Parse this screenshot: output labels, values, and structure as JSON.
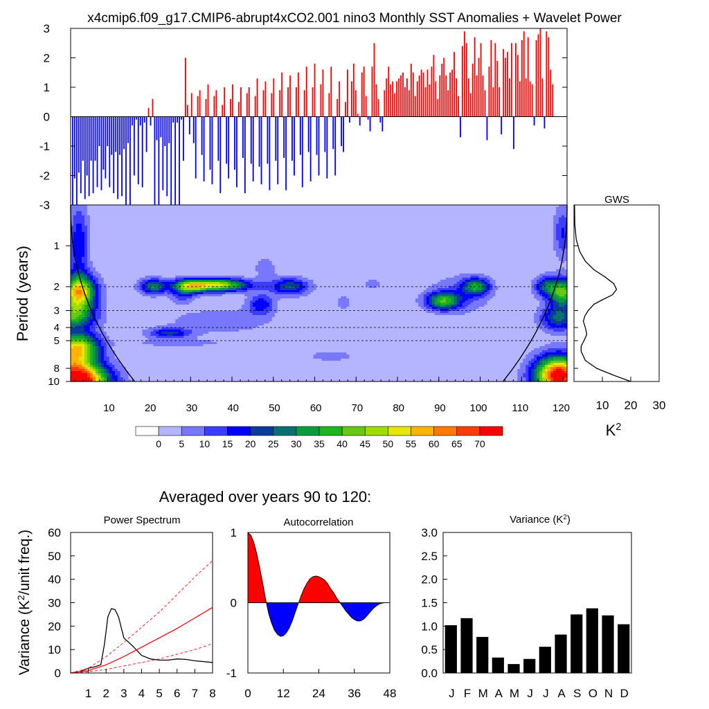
{
  "page_title": "x4cmip6.f09_g17.CMIP6-abrupt4xCO2.001 nino3 Monthly SST Anomalies + Wavelet Power",
  "average_title": "Averaged over years 90 to 120:",
  "colors": {
    "positive": "#ff0000",
    "negative": "#0000ff",
    "bars": "#000000",
    "background": "#ffffff"
  },
  "chart_data": [
    {
      "id": "sst_anomalies",
      "type": "bar",
      "title": "",
      "ylabel": "",
      "ylim": [
        -3,
        3
      ],
      "yticks": [
        -3,
        -2,
        -1,
        0,
        1,
        2,
        3
      ],
      "xlim": [
        0,
        121
      ],
      "x_start": 0.5,
      "step_years": 0.5,
      "values": [
        -3,
        -2.1,
        -3,
        -1.9,
        -2.6,
        -1.5,
        -2.8,
        -2,
        -2.7,
        -1.5,
        -2.6,
        -1.5,
        -2.4,
        -1,
        -2.5,
        -1.8,
        -2.1,
        -1,
        -2.4,
        -1.3,
        -2.6,
        -1.2,
        -2.8,
        -1.3,
        -2.7,
        -1.1,
        -3,
        -0.9,
        -3,
        -0.3,
        -2,
        -0.1,
        -2.3,
        -0.3,
        -2.4,
        -0.2,
        -1.2,
        0.3,
        -0.3,
        0.6,
        -3,
        -0.8,
        -3,
        -0.7,
        -2.5,
        -1,
        -2.7,
        -0.9,
        -3,
        -0.2,
        -3,
        -0.2,
        -3,
        -0.1,
        -1.5,
        2,
        0.4,
        -0.6,
        0.8,
        -0.9,
        -2.1,
        0.7,
        0.9,
        -1.3,
        -2.2,
        0.6,
        1.1,
        -1.8,
        -2.3,
        0.7,
        0.9,
        -1.5,
        -2.6,
        0.4,
        1,
        -1.6,
        -2.1,
        0.6,
        1.1,
        -1.8,
        -2.4,
        0.5,
        1,
        -1.4,
        -2.6,
        0.8,
        1,
        -1.6,
        -2.2,
        0.7,
        1.3,
        -1.7,
        -2.3,
        0.9,
        1.2,
        -1.6,
        -2.5,
        0.8,
        1.3,
        -1.5,
        -2.3,
        0.9,
        1.5,
        -1.4,
        -2.5,
        1,
        1.4,
        -1.5,
        -2,
        1,
        1.5,
        -1.3,
        -2.4,
        0.9,
        1.7,
        -1.2,
        -2.2,
        1,
        1.8,
        -1.3,
        -2,
        1.1,
        1.6,
        -1.2,
        -2.1,
        0.8,
        1.7,
        -1.1,
        -2,
        0.6,
        1.2,
        -1,
        -1.2,
        0.5,
        1.6,
        -0.2,
        1.2,
        1.8,
        0.9,
        0.1,
        -0.3,
        1.5,
        1.7,
        0.7,
        -0.1,
        -0.5,
        1.7,
        2.5,
        1.1,
        0.6,
        -0.2,
        -0.5,
        0.9,
        1.3,
        1.7,
        1.1,
        1.2,
        0.8,
        1.2,
        1.3,
        1.4,
        1.5,
        1,
        1.3,
        0.9,
        1.8,
        1.5,
        0.7,
        1.2,
        1.4,
        1.6,
        1.5,
        1,
        1.6,
        1.1,
        1.7,
        2.1,
        1.2,
        0.6,
        1.4,
        1.8,
        2,
        1.4,
        0.9,
        1.5,
        1.6,
        2.2,
        1.3,
        0.7,
        -0.7,
        2.4,
        2.9,
        2.5,
        1.3,
        0.8,
        1.8,
        2.7,
        1.4,
        2,
        2.5,
        1.4,
        0.9,
        -0.8,
        1.7,
        2.6,
        1,
        2.5,
        1.9,
        1,
        -0.6,
        2.3,
        2,
        2.2,
        1.3,
        2.5,
        -1.1,
        2.5,
        2.1,
        1.2,
        2.6,
        2.9,
        1.3,
        2.7,
        1.2,
        1.1,
        -0.3,
        2.6,
        2.8,
        3,
        1.3,
        -0.4,
        2.9,
        2.7,
        1.6,
        1.1
      ],
      "pos_color": "#ff0000",
      "neg_color": "#0000ff"
    },
    {
      "id": "wavelet_power",
      "type": "heatmap",
      "ylabel": "Period (years)",
      "xticks": [
        10,
        20,
        30,
        40,
        50,
        60,
        70,
        80,
        90,
        100,
        110,
        120
      ],
      "xlim": [
        1,
        121
      ],
      "yticks": [
        1,
        2,
        3,
        4,
        5,
        8,
        10
      ],
      "ylim": [
        0.5,
        10
      ],
      "dashed_periods": [
        2,
        3,
        4,
        5
      ],
      "levels": [
        0,
        5,
        10,
        15,
        20,
        25,
        30,
        35,
        40,
        45,
        50,
        55,
        60,
        65,
        70
      ],
      "palette": [
        "#ffffff",
        "#b4b4ff",
        "#7878ff",
        "#3c3cff",
        "#0000ff",
        "#0a3ca0",
        "#096f6f",
        "#0a9b3c",
        "#1eb41e",
        "#64c814",
        "#a0dc00",
        "#e6e600",
        "#ffb400",
        "#ff7800",
        "#ff3c00",
        "#ff0000"
      ],
      "blobs": [
        {
          "x": 3,
          "p": 0.95,
          "sx": 1.6,
          "sp": 0.45,
          "v": 18
        },
        {
          "x": 3,
          "p": 2.2,
          "sx": 2.8,
          "sp": 0.2,
          "v": 55
        },
        {
          "x": 1,
          "p": 3.3,
          "sx": 4,
          "sp": 0.16,
          "v": 35
        },
        {
          "x": 3,
          "p": 5.5,
          "sx": 3.5,
          "sp": 0.16,
          "v": 40
        },
        {
          "x": 3,
          "p": 10,
          "sx": 5,
          "sp": 0.2,
          "v": 75
        },
        {
          "x": 21,
          "p": 2,
          "sx": 2.2,
          "sp": 0.09,
          "v": 28
        },
        {
          "x": 28,
          "p": 2.2,
          "sx": 2,
          "sp": 0.12,
          "v": 14
        },
        {
          "x": 36,
          "p": 1.95,
          "sx": 5.5,
          "sp": 0.075,
          "v": 50
        },
        {
          "x": 30,
          "p": 2,
          "sx": 2.5,
          "sp": 0.08,
          "v": 25
        },
        {
          "x": 47,
          "p": 2.7,
          "sx": 2.2,
          "sp": 0.12,
          "v": 18
        },
        {
          "x": 54,
          "p": 2,
          "sx": 3.2,
          "sp": 0.1,
          "v": 24
        },
        {
          "x": 25,
          "p": 4.4,
          "sx": 3.5,
          "sp": 0.06,
          "v": 20
        },
        {
          "x": 37,
          "p": 3.6,
          "sx": 9,
          "sp": 0.15,
          "v": 7
        },
        {
          "x": 27,
          "p": 5.2,
          "sx": 8,
          "sp": 0.05,
          "v": 6
        },
        {
          "x": 48,
          "p": 1.45,
          "sx": 2,
          "sp": 0.15,
          "v": 6
        },
        {
          "x": 64,
          "p": 6.5,
          "sx": 4.5,
          "sp": 0.07,
          "v": 6
        },
        {
          "x": 67,
          "p": 2.6,
          "sx": 1.5,
          "sp": 0.1,
          "v": 6
        },
        {
          "x": 91,
          "p": 2.55,
          "sx": 2.8,
          "sp": 0.1,
          "v": 34
        },
        {
          "x": 99,
          "p": 2,
          "sx": 2.2,
          "sp": 0.1,
          "v": 30
        },
        {
          "x": 95,
          "p": 2.3,
          "sx": 5,
          "sp": 0.22,
          "v": 9
        },
        {
          "x": 74,
          "p": 1.9,
          "sx": 2,
          "sp": 0.08,
          "v": 5
        },
        {
          "x": 116,
          "p": 2,
          "sx": 2,
          "sp": 0.12,
          "v": 22
        },
        {
          "x": 120,
          "p": 2.2,
          "sx": 2.2,
          "sp": 0.16,
          "v": 40
        },
        {
          "x": 119,
          "p": 3.4,
          "sx": 3,
          "sp": 0.15,
          "v": 25
        },
        {
          "x": 120,
          "p": 0.8,
          "sx": 1.5,
          "sp": 0.3,
          "v": 14
        },
        {
          "x": 119,
          "p": 9,
          "sx": 4,
          "sp": 0.22,
          "v": 75
        },
        {
          "x": 1,
          "p": 7,
          "sx": 4,
          "sp": 0.2,
          "v": 30
        }
      ],
      "coi_edge_years": 15.5
    },
    {
      "id": "gws",
      "type": "line",
      "title": "GWS",
      "xlabel": "K²",
      "xticks": [
        10,
        20,
        30
      ],
      "xlim": [
        0,
        30
      ],
      "period": [
        0.5,
        0.7,
        0.9,
        1.1,
        1.3,
        1.5,
        1.7,
        1.9,
        2.1,
        2.3,
        2.5,
        2.7,
        3,
        3.3,
        3.6,
        4,
        4.5,
        5,
        5.5,
        6,
        7,
        8,
        9,
        10
      ],
      "power": [
        0.2,
        0.3,
        0.8,
        2,
        4,
        7,
        11,
        14,
        15,
        13.5,
        10,
        7,
        5,
        3.8,
        3.3,
        4,
        4.5,
        3.5,
        2.5,
        2.5,
        4,
        8,
        14,
        20
      ]
    },
    {
      "id": "power_spectrum",
      "type": "line",
      "title": "Power Spectrum",
      "ylabel": "Variance (K²/unit freq.)",
      "xlim": [
        0,
        8
      ],
      "ylim": [
        0,
        60
      ],
      "xticks": [
        1,
        2,
        3,
        4,
        5,
        6,
        7,
        8
      ],
      "yticks": [
        0,
        10,
        20,
        30,
        40,
        50,
        60
      ],
      "series": [
        {
          "name": "spectrum",
          "color": "#000000",
          "dashed": false,
          "x": [
            0,
            0.5,
            1,
            1.3,
            1.5,
            1.7,
            1.9,
            2.1,
            2.3,
            2.5,
            2.7,
            3,
            3.5,
            4,
            4.5,
            5,
            5.5,
            6,
            6.5,
            7,
            8
          ],
          "y": [
            0,
            0.5,
            2,
            2.5,
            3,
            3.5,
            12,
            24,
            27.5,
            27,
            24,
            15,
            11.5,
            7.5,
            6,
            5.5,
            5.5,
            6,
            5.8,
            5.2,
            4.5
          ]
        },
        {
          "name": "red-noise",
          "color": "#ff0000",
          "dashed": false,
          "x": [
            0,
            1,
            2,
            3,
            4,
            5,
            6,
            7,
            8
          ],
          "y": [
            0,
            1,
            3.5,
            7,
            11,
            15,
            19,
            23.5,
            28
          ]
        },
        {
          "name": "upper-bound",
          "color": "#ff0000",
          "dashed": true,
          "x": [
            0,
            1,
            2,
            3,
            4,
            5,
            6,
            7,
            8
          ],
          "y": [
            0,
            2,
            7,
            13,
            19.5,
            26,
            33.5,
            41,
            48
          ]
        },
        {
          "name": "lower-bound",
          "color": "#ff0000",
          "dashed": true,
          "x": [
            0,
            1,
            2,
            3,
            4,
            5,
            6,
            7,
            8
          ],
          "y": [
            0,
            0.5,
            1.5,
            3,
            4.5,
            6,
            8,
            10,
            12.5
          ]
        }
      ]
    },
    {
      "id": "autocorrelation",
      "type": "area",
      "title": "Autocorrelation",
      "xlim": [
        0,
        48
      ],
      "ylim": [
        -1,
        1
      ],
      "xticks": [
        0,
        12,
        24,
        36,
        48
      ],
      "yticks": [
        -1,
        0,
        1
      ],
      "lag": [
        0,
        1,
        2,
        3,
        4,
        5,
        6,
        7,
        8,
        9,
        10,
        11,
        12,
        13,
        14,
        15,
        16,
        17,
        18,
        19,
        20,
        21,
        22,
        23,
        24,
        25,
        26,
        27,
        28,
        29,
        30,
        31,
        32,
        33,
        34,
        35,
        36,
        37,
        38,
        39,
        40,
        41,
        42,
        43,
        44,
        45,
        46,
        47,
        48
      ],
      "values": [
        1.0,
        0.96,
        0.86,
        0.7,
        0.5,
        0.28,
        0.05,
        -0.15,
        -0.29,
        -0.39,
        -0.45,
        -0.48,
        -0.47,
        -0.43,
        -0.36,
        -0.26,
        -0.14,
        -0.02,
        0.1,
        0.2,
        0.28,
        0.34,
        0.37,
        0.38,
        0.37,
        0.35,
        0.32,
        0.27,
        0.2,
        0.14,
        0.07,
        0.01,
        -0.05,
        -0.11,
        -0.16,
        -0.21,
        -0.24,
        -0.26,
        -0.26,
        -0.24,
        -0.2,
        -0.15,
        -0.1,
        -0.06,
        -0.03,
        -0.01,
        0.0,
        0.0,
        0.0
      ]
    },
    {
      "id": "monthly_variance",
      "type": "bar",
      "title": "Variance (K²)",
      "categories": [
        "J",
        "F",
        "M",
        "A",
        "M",
        "J",
        "J",
        "A",
        "S",
        "O",
        "N",
        "D"
      ],
      "values": [
        1.02,
        1.17,
        0.77,
        0.33,
        0.19,
        0.3,
        0.56,
        0.82,
        1.25,
        1.38,
        1.23,
        1.04
      ],
      "ylim": [
        0,
        3
      ],
      "yticks": [
        0.0,
        0.5,
        1.0,
        1.5,
        2.0,
        2.5,
        3.0
      ],
      "color": "#000000"
    }
  ]
}
